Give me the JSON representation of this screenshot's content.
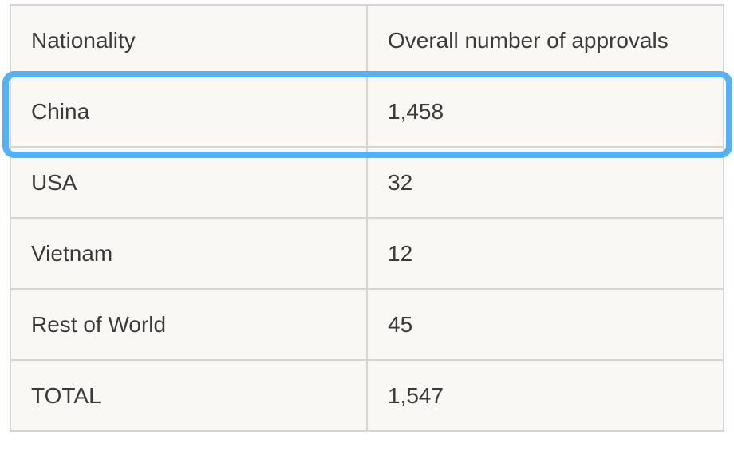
{
  "table": {
    "header": [
      "Nationality",
      "Overall number of approvals"
    ],
    "rows": [
      [
        "China",
        "1,458"
      ],
      [
        "USA",
        "32"
      ],
      [
        "Vietnam",
        "12"
      ],
      [
        "Rest of World",
        "45"
      ],
      [
        "TOTAL",
        "1,547"
      ]
    ]
  }
}
